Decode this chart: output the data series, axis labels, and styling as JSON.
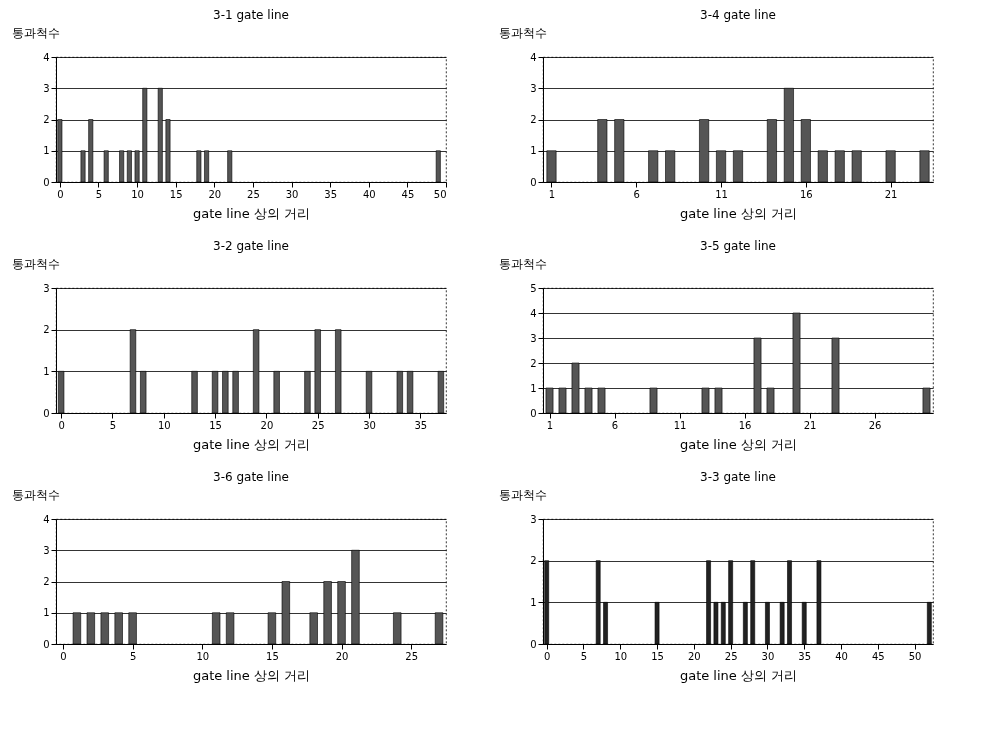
{
  "chart_data": [
    {
      "type": "bar",
      "title": "3-1 gate line",
      "xlabel": "gate line 상의 거리",
      "ylabel": "통과척수",
      "color": "#555555",
      "grid": "y",
      "x": [
        0,
        3,
        4,
        6,
        8,
        9,
        10,
        11,
        13,
        14,
        18,
        19,
        22,
        49
      ],
      "values": [
        2,
        1,
        2,
        1,
        1,
        1,
        1,
        3,
        3,
        2,
        1,
        1,
        1,
        1
      ],
      "xlim": [
        -0.5,
        50
      ],
      "xticks": [
        0,
        5,
        10,
        15,
        20,
        25,
        30,
        35,
        40,
        45,
        50
      ],
      "ylim": [
        0,
        4
      ],
      "yticks": [
        0,
        1,
        2,
        3,
        4
      ]
    },
    {
      "type": "bar",
      "title": "3-4 gate line",
      "xlabel": "gate line 상의 거리",
      "ylabel": "통과척수",
      "color": "#555555",
      "grid": "y",
      "x": [
        1,
        4,
        5,
        7,
        8,
        10,
        11,
        12,
        14,
        15,
        16,
        17,
        18,
        19,
        21,
        23
      ],
      "values": [
        1,
        2,
        2,
        1,
        1,
        2,
        1,
        1,
        2,
        3,
        2,
        1,
        1,
        1,
        1,
        1
      ],
      "xlim": [
        0.5,
        23.5
      ],
      "xticks": [
        1,
        6,
        11,
        16,
        21
      ],
      "ylim": [
        0,
        4
      ],
      "yticks": [
        0,
        1,
        2,
        3,
        4
      ]
    },
    {
      "type": "bar",
      "title": "3-2 gate line",
      "xlabel": "gate line 상의 거리",
      "ylabel": "통과척수",
      "color": "#555555",
      "grid": "y",
      "x": [
        0,
        7,
        8,
        13,
        15,
        16,
        17,
        19,
        21,
        24,
        25,
        27,
        30,
        33,
        34,
        37
      ],
      "values": [
        1,
        2,
        1,
        1,
        1,
        1,
        1,
        2,
        1,
        1,
        2,
        2,
        1,
        1,
        1,
        1
      ],
      "xlim": [
        -0.5,
        37.5
      ],
      "xticks": [
        0,
        5,
        10,
        15,
        20,
        25,
        30,
        35
      ],
      "ylim": [
        0,
        3
      ],
      "yticks": [
        0,
        1,
        2,
        3
      ]
    },
    {
      "type": "bar",
      "title": "3-5 gate line",
      "xlabel": "gate line 상의 거리",
      "ylabel": "통과척수",
      "color": "#555555",
      "grid": "y",
      "x": [
        1,
        2,
        3,
        4,
        5,
        9,
        13,
        14,
        17,
        18,
        20,
        23,
        30
      ],
      "values": [
        1,
        1,
        2,
        1,
        1,
        1,
        1,
        1,
        3,
        1,
        4,
        3,
        1
      ],
      "xlim": [
        0.5,
        30.5
      ],
      "xticks": [
        1,
        6,
        11,
        16,
        21,
        26
      ],
      "ylim": [
        0,
        5
      ],
      "yticks": [
        0,
        1,
        2,
        3,
        4,
        5
      ]
    },
    {
      "type": "bar",
      "title": "3-6 gate line",
      "xlabel": "gate line 상의 거리",
      "ylabel": "통과척수",
      "color": "#555555",
      "grid": "y",
      "x": [
        1,
        2,
        3,
        4,
        5,
        11,
        12,
        15,
        16,
        18,
        19,
        20,
        21,
        24,
        27
      ],
      "values": [
        1,
        1,
        1,
        1,
        1,
        1,
        1,
        1,
        2,
        1,
        2,
        2,
        3,
        1,
        1
      ],
      "xlim": [
        -0.5,
        27.5
      ],
      "xticks": [
        0,
        5,
        10,
        15,
        20,
        25
      ],
      "ylim": [
        0,
        4
      ],
      "yticks": [
        0,
        1,
        2,
        3,
        4
      ]
    },
    {
      "type": "bar",
      "title": "3-3 gate line",
      "xlabel": "gate line 상의 거리",
      "ylabel": "통과척수",
      "color": "#222222",
      "grid": "y",
      "x": [
        0,
        7,
        8,
        15,
        22,
        23,
        24,
        25,
        27,
        28,
        30,
        32,
        33,
        35,
        37,
        52
      ],
      "values": [
        2,
        2,
        1,
        1,
        2,
        1,
        1,
        2,
        1,
        2,
        1,
        1,
        2,
        1,
        2,
        1
      ],
      "xlim": [
        -0.5,
        52.5
      ],
      "xticks": [
        0,
        5,
        10,
        15,
        20,
        25,
        30,
        35,
        40,
        45,
        50
      ],
      "ylim": [
        0,
        3
      ],
      "yticks": [
        0,
        1,
        2,
        3
      ]
    }
  ]
}
